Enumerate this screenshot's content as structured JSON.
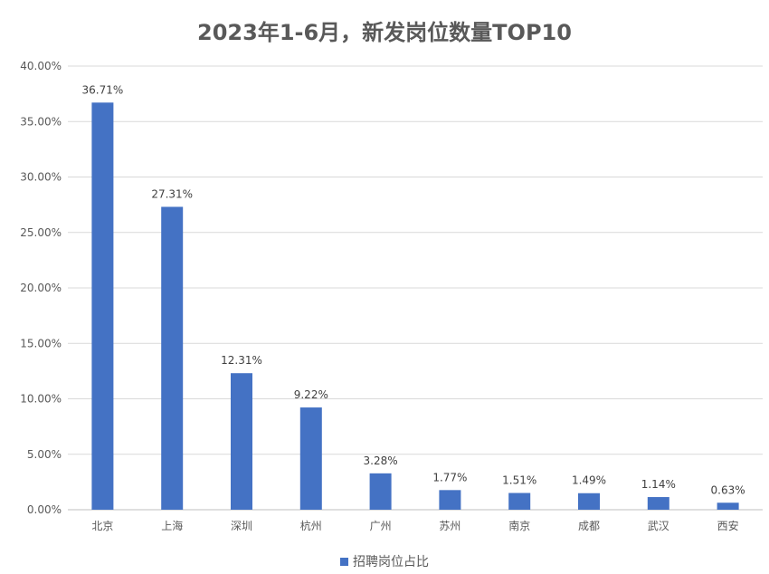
{
  "chart_data": {
    "type": "bar",
    "title": "2023年1-6月，新发岗位数量TOP10",
    "categories": [
      "北京",
      "上海",
      "深圳",
      "杭州",
      "广州",
      "苏州",
      "南京",
      "成都",
      "武汉",
      "西安"
    ],
    "series": [
      {
        "name": "招聘岗位占比",
        "values": [
          36.71,
          27.31,
          12.31,
          9.22,
          3.28,
          1.77,
          1.51,
          1.49,
          1.14,
          0.63
        ],
        "value_labels": [
          "36.71%",
          "27.31%",
          "12.31%",
          "9.22%",
          "3.28%",
          "1.77%",
          "1.51%",
          "1.49%",
          "1.14%",
          "0.63%"
        ],
        "color": "#4472C4"
      }
    ],
    "ylim": [
      0,
      40
    ],
    "yticks": [
      0,
      5,
      10,
      15,
      20,
      25,
      30,
      35,
      40
    ],
    "ytick_labels": [
      "0.00%",
      "5.00%",
      "10.00%",
      "15.00%",
      "20.00%",
      "25.00%",
      "30.00%",
      "35.00%",
      "40.00%"
    ],
    "grid": true,
    "legend_position": "bottom",
    "xlabel": "",
    "ylabel": ""
  }
}
